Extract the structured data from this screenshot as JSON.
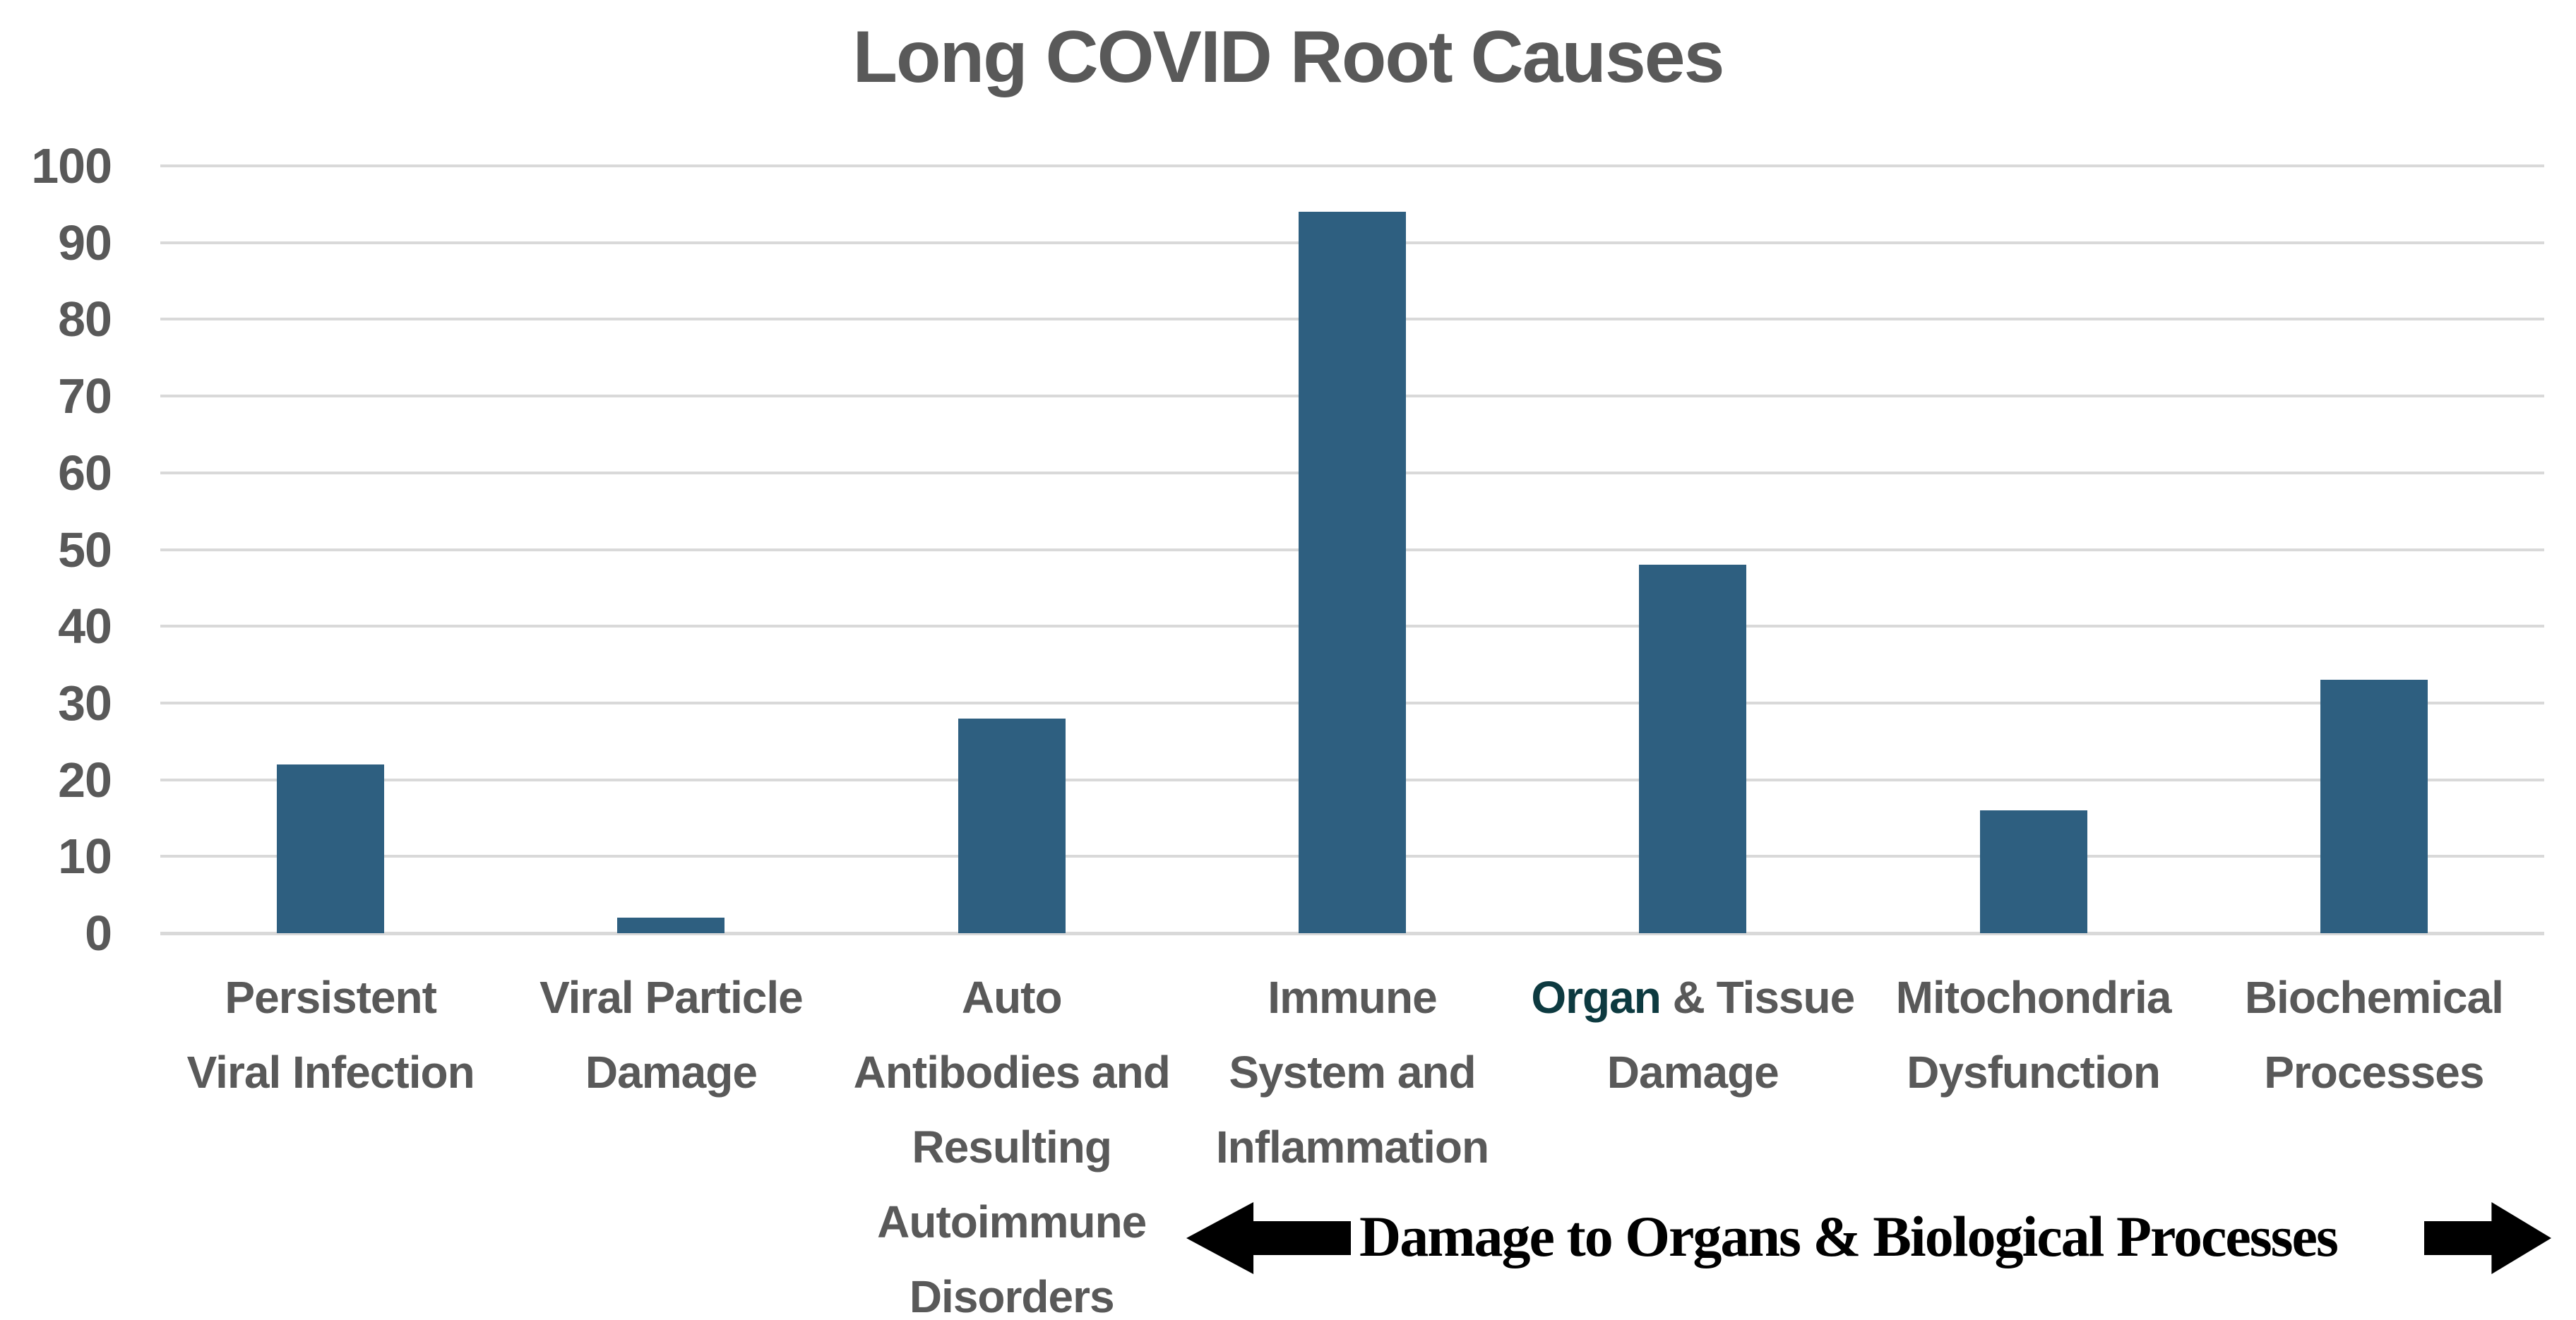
{
  "title": "Long COVID Root Causes",
  "chart_data": {
    "type": "bar",
    "title": "Long COVID Root Causes",
    "categories": [
      "Persistent Viral Infection",
      "Viral Particle Damage",
      "Auto Antibodies and Resulting Autoimmune Disorders",
      "Immune System and Inflammation",
      "Organ & Tissue Damage",
      "Mitochondria Dysfunction",
      "Biochemical Processes"
    ],
    "category_lines": [
      [
        "Persistent",
        "Viral Infection"
      ],
      [
        "Viral Particle",
        "Damage"
      ],
      [
        "Auto",
        "Antibodies and",
        "Resulting",
        "Autoimmune",
        "Disorders"
      ],
      [
        "Immune",
        "System and",
        "Inflammation"
      ],
      [
        "Organ & Tissue",
        "Damage"
      ],
      [
        "Mitochondria",
        "Dysfunction"
      ],
      [
        "Biochemical",
        "Processes"
      ]
    ],
    "values": [
      22,
      2,
      28,
      94,
      48,
      16,
      33
    ],
    "ylim": [
      0,
      100
    ],
    "yticks": [
      0,
      10,
      20,
      30,
      40,
      50,
      60,
      70,
      80,
      90,
      100
    ],
    "xlabel": "",
    "ylabel": "",
    "legend": "none",
    "grid": "horizontal",
    "bar_color": "#2E5F80",
    "highlight": {
      "category_index": 4,
      "word": "Organ",
      "color": "#0D3A40"
    }
  },
  "annotation": {
    "text": "Damage to Organs & Biological Processes",
    "left_arrow_icon": "left-block-arrow",
    "right_arrow_icon": "right-block-arrow"
  },
  "colors": {
    "background": "#FFFFFF",
    "bar": "#2E5F80",
    "title_text": "#595959",
    "axis_text": "#595959",
    "gridline": "#D9D9D9",
    "organ_highlight": "#0D3A40",
    "annotation_text": "#000000",
    "arrow": "#000000"
  }
}
